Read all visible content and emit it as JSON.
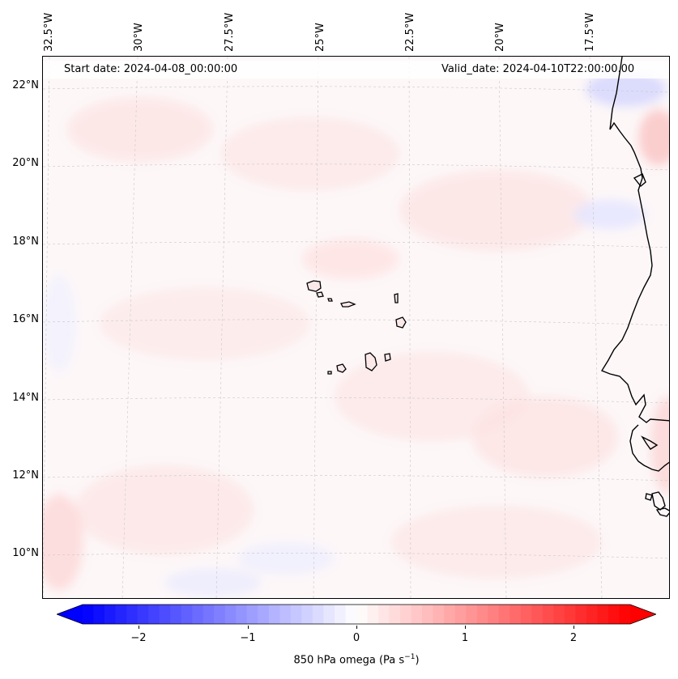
{
  "map": {
    "lon_labels": [
      "32.5°W",
      "30°W",
      "27.5°W",
      "25°W",
      "22.5°W",
      "20°W",
      "17.5°W"
    ],
    "lat_labels": [
      "22°N",
      "20°N",
      "18°N",
      "16°N",
      "14°N",
      "12°N",
      "10°N"
    ],
    "start_date": "Start date: 2024-04-08_00:00:00",
    "valid_date": "Valid_date: 2024-04-10T22:00:00.00",
    "colors": {
      "negative": "#0000ff",
      "zero": "#ffffff",
      "positive": "#ff0000",
      "coast": "#000000"
    }
  },
  "colorbar": {
    "ticks": [
      "−2",
      "−1",
      "0",
      "1",
      "2"
    ],
    "tick_values": [
      -2,
      -1,
      0,
      1,
      2
    ],
    "range": [
      -2.5,
      2.5
    ],
    "label_prefix": "850 hPa omega (Pa s",
    "label_exp": "−1",
    "label_suffix": ")"
  }
}
